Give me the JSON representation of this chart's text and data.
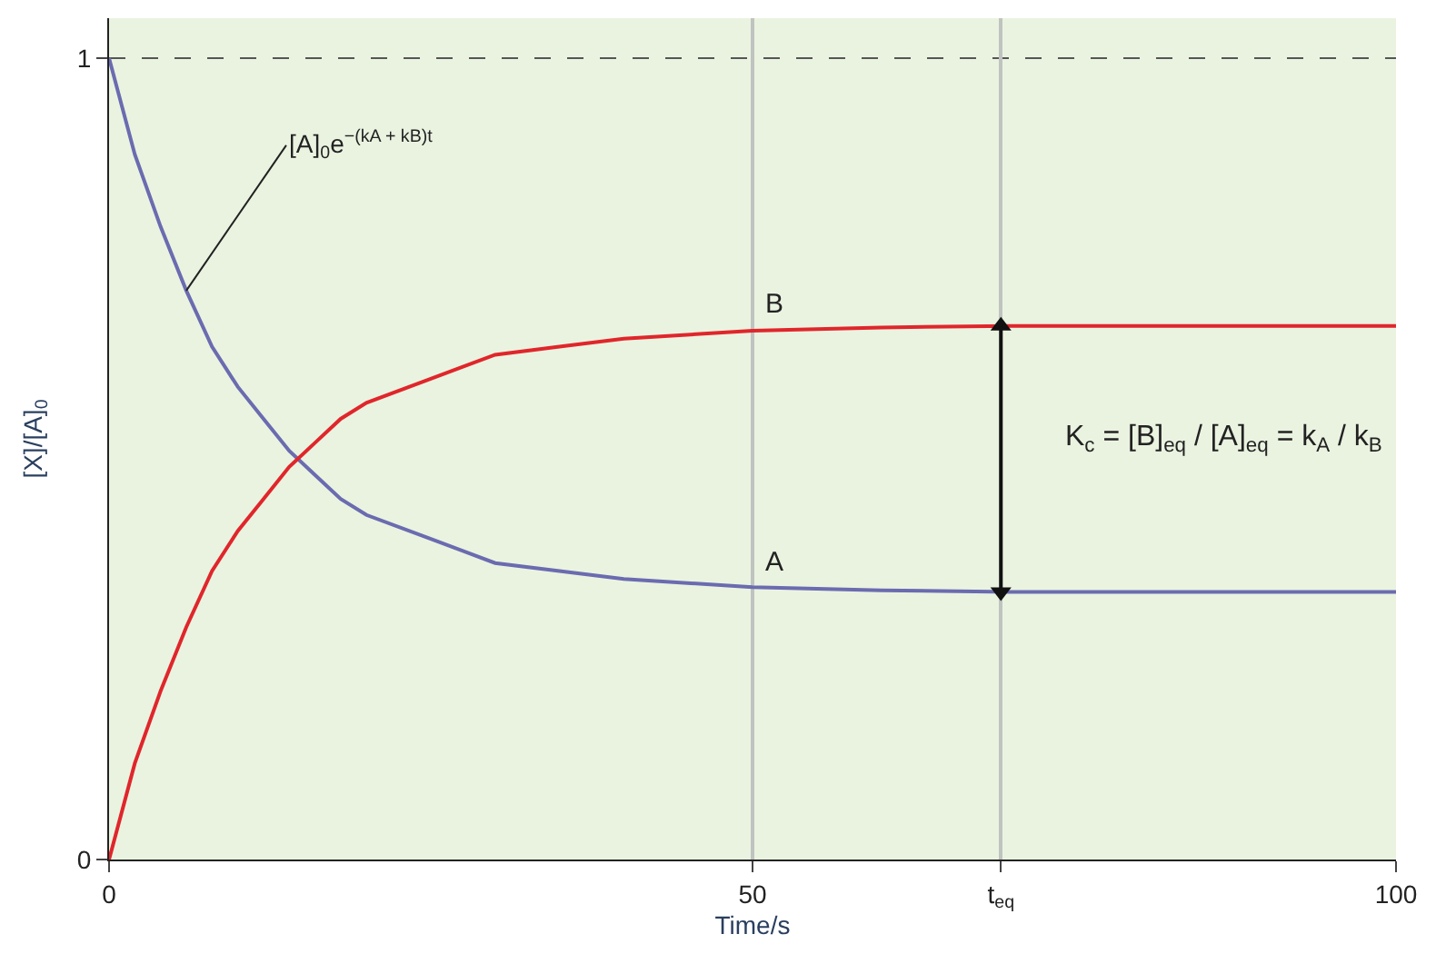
{
  "chart_data": {
    "type": "line",
    "xlabel": "Time/s",
    "ylabel": "[X]/[A]$_{0}$",
    "x": [
      0,
      2,
      4,
      6,
      8,
      10,
      12,
      14,
      16,
      18,
      20,
      25,
      30,
      35,
      40,
      50,
      60,
      70,
      80,
      90,
      100
    ],
    "series": [
      {
        "name": "A",
        "color": "#6b6bb0",
        "values": [
          1.0,
          0.88,
          0.79,
          0.71,
          0.64,
          0.59,
          0.55,
          0.51,
          0.48,
          0.45,
          0.43,
          0.4,
          0.37,
          0.36,
          0.35,
          0.34,
          0.336,
          0.334,
          0.334,
          0.334,
          0.334
        ]
      },
      {
        "name": "B",
        "color": "#e0262b",
        "values": [
          0.0,
          0.12,
          0.21,
          0.29,
          0.36,
          0.41,
          0.45,
          0.49,
          0.52,
          0.55,
          0.57,
          0.6,
          0.63,
          0.64,
          0.65,
          0.66,
          0.664,
          0.666,
          0.666,
          0.666,
          0.666
        ]
      },
      {
        "type": "line",
        "color": "#111111",
        "x": [
          69.3,
          69.3
        ],
        "values": [
          0.334,
          0.666
        ],
        "marker": "triangle"
      }
    ],
    "xlim": [
      0,
      100
    ],
    "ylim": [
      0,
      1.05
    ],
    "xticks": [
      0,
      50,
      {
        "value": 69.3,
        "label": "t$_{eq}$"
      },
      100
    ],
    "yticks": [
      0,
      1
    ],
    "ref_lines": [
      {
        "axis": "y",
        "value": 1,
        "label": null,
        "color": "#555555",
        "line_style": "dashed"
      }
    ],
    "annotations": [
      {
        "text": "[A]$_{0}$e$^{−(kA + kB)t}$",
        "x": 6,
        "y": 0.71
      },
      "K$_{c}$ = [B]$_{eq}$ / [A]$_{eq}$ = k$_{A}$ / k$_{B}$"
    ],
    "grid": "x",
    "legend": false,
    "marker": "none",
    "line_style": "solid"
  }
}
